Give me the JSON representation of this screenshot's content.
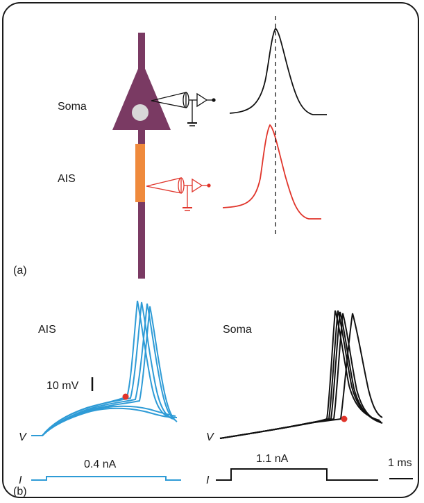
{
  "panel_a": {
    "label": "(a)",
    "soma_label": "Soma",
    "ais_label": "AIS"
  },
  "panel_b": {
    "label": "(b)",
    "ais_title": "AIS",
    "soma_title": "Soma",
    "voltage_scale_label": "10 mV",
    "time_scale_label": "1 ms",
    "v_label_left": "V",
    "i_label_left": "I",
    "v_label_right": "V",
    "i_label_right": "I",
    "ais_current_label": "0.4 nA",
    "soma_current_label": "1.1 nA"
  },
  "colors": {
    "neuron": "#7a3a63",
    "ais_segment": "#ef8a3c",
    "soma_trace": "#111111",
    "ais_trace_a": "#e0342a",
    "ais_trace_b": "#2e9bd6",
    "onset_marker": "#e0342a",
    "nucleus": "#d8d8d8"
  }
}
